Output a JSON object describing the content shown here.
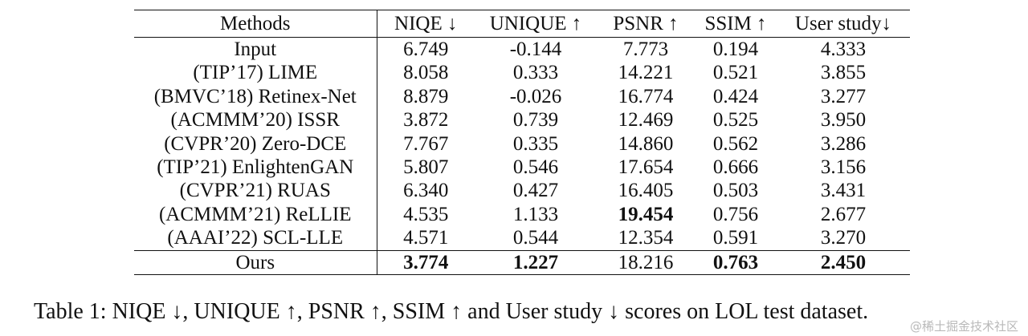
{
  "table": {
    "headers": [
      "Methods",
      "NIQE ↓",
      "UNIQUE ↑",
      "PSNR ↑",
      "SSIM ↑",
      "User study↓"
    ],
    "rows": [
      {
        "method": "Input",
        "values": [
          "6.749",
          "-0.144",
          "7.773",
          "0.194",
          "4.333"
        ],
        "bold": [
          false,
          false,
          false,
          false,
          false
        ]
      },
      {
        "method": "(TIP’17) LIME",
        "values": [
          "8.058",
          "0.333",
          "14.221",
          "0.521",
          "3.855"
        ],
        "bold": [
          false,
          false,
          false,
          false,
          false
        ]
      },
      {
        "method": "(BMVC’18) Retinex-Net",
        "values": [
          "8.879",
          "-0.026",
          "16.774",
          "0.424",
          "3.277"
        ],
        "bold": [
          false,
          false,
          false,
          false,
          false
        ]
      },
      {
        "method": "(ACMMM’20) ISSR",
        "values": [
          "3.872",
          "0.739",
          "12.469",
          "0.525",
          "3.950"
        ],
        "bold": [
          false,
          false,
          false,
          false,
          false
        ]
      },
      {
        "method": "(CVPR’20) Zero-DCE",
        "values": [
          "7.767",
          "0.335",
          "14.860",
          "0.562",
          "3.286"
        ],
        "bold": [
          false,
          false,
          false,
          false,
          false
        ]
      },
      {
        "method": "(TIP’21) EnlightenGAN",
        "values": [
          "5.807",
          "0.546",
          "17.654",
          "0.666",
          "3.156"
        ],
        "bold": [
          false,
          false,
          false,
          false,
          false
        ]
      },
      {
        "method": "(CVPR’21) RUAS",
        "values": [
          "6.340",
          "0.427",
          "16.405",
          "0.503",
          "3.431"
        ],
        "bold": [
          false,
          false,
          false,
          false,
          false
        ]
      },
      {
        "method": "(ACMMM’21) ReLLIE",
        "values": [
          "4.535",
          "1.133",
          "19.454",
          "0.756",
          "2.677"
        ],
        "bold": [
          false,
          false,
          true,
          false,
          false
        ]
      },
      {
        "method": "(AAAI’22) SCL-LLE",
        "values": [
          "4.571",
          "0.544",
          "12.354",
          "0.591",
          "3.270"
        ],
        "bold": [
          false,
          false,
          false,
          false,
          false
        ]
      },
      {
        "method": "Ours",
        "values": [
          "3.774",
          "1.227",
          "18.216",
          "0.763",
          "2.450"
        ],
        "bold": [
          true,
          true,
          false,
          true,
          true
        ]
      }
    ]
  },
  "caption": "Table 1: NIQE ↓, UNIQUE ↑, PSNR ↑, SSIM ↑ and User study ↓ scores on LOL test dataset.",
  "watermark": "@稀土掘金技术社区"
}
